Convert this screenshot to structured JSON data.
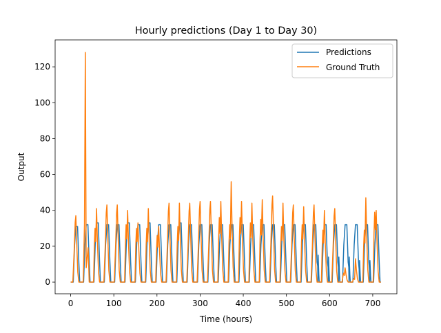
{
  "chart_data": {
    "type": "line",
    "title": "Hourly predictions (Day 1 to Day 30)",
    "xlabel": "Time (hours)",
    "ylabel": "Output",
    "xlim": [
      -36,
      756
    ],
    "ylim": [
      -6.5,
      135
    ],
    "x_ticks": [
      0,
      100,
      200,
      300,
      400,
      500,
      600,
      700
    ],
    "y_ticks": [
      0,
      20,
      40,
      60,
      80,
      100,
      120
    ],
    "legend_position": "top-right",
    "grid": false,
    "series": [
      {
        "name": "Predictions",
        "color": "#1f77b4",
        "period": 24,
        "rise_start": 6,
        "peak_hour": 12,
        "plateau_end": 16,
        "fall_end": 21,
        "daily_peaks": [
          31,
          32,
          33,
          32,
          32,
          33,
          32,
          33,
          32,
          32,
          33,
          32,
          32,
          32,
          32,
          32,
          32,
          32,
          32,
          32,
          32,
          32,
          32,
          32,
          32,
          32,
          32,
          32,
          32,
          32
        ],
        "night_bumps": {
          "23": 15,
          "24": 14,
          "25": 14,
          "26": 14,
          "27": 12,
          "28": 12
        }
      },
      {
        "name": "Ground Truth",
        "color": "#ff7f0e",
        "period": 24,
        "rise_start": 5,
        "peak_hour": 12,
        "fall_end": 19,
        "daily_peaks": [
          37,
          128,
          41,
          43,
          43,
          40,
          33,
          41,
          31,
          44,
          44,
          44,
          45,
          45,
          45,
          56,
          45,
          44,
          46,
          48,
          44,
          43,
          42,
          43,
          40,
          41,
          8,
          13,
          47,
          40
        ],
        "second_peaks": {
          "1": 33,
          "2": 30,
          "5": 32,
          "6": 30,
          "7": 30,
          "8": 26,
          "10": 31,
          "14": 36,
          "15": 32,
          "16": 36,
          "17": 33,
          "18": 35,
          "20": 31,
          "22": 32,
          "24": 29,
          "26": 5,
          "27": 2,
          "28": 29,
          "29": 39
        },
        "spike": {
          "x": 34,
          "y": 128
        }
      }
    ]
  }
}
